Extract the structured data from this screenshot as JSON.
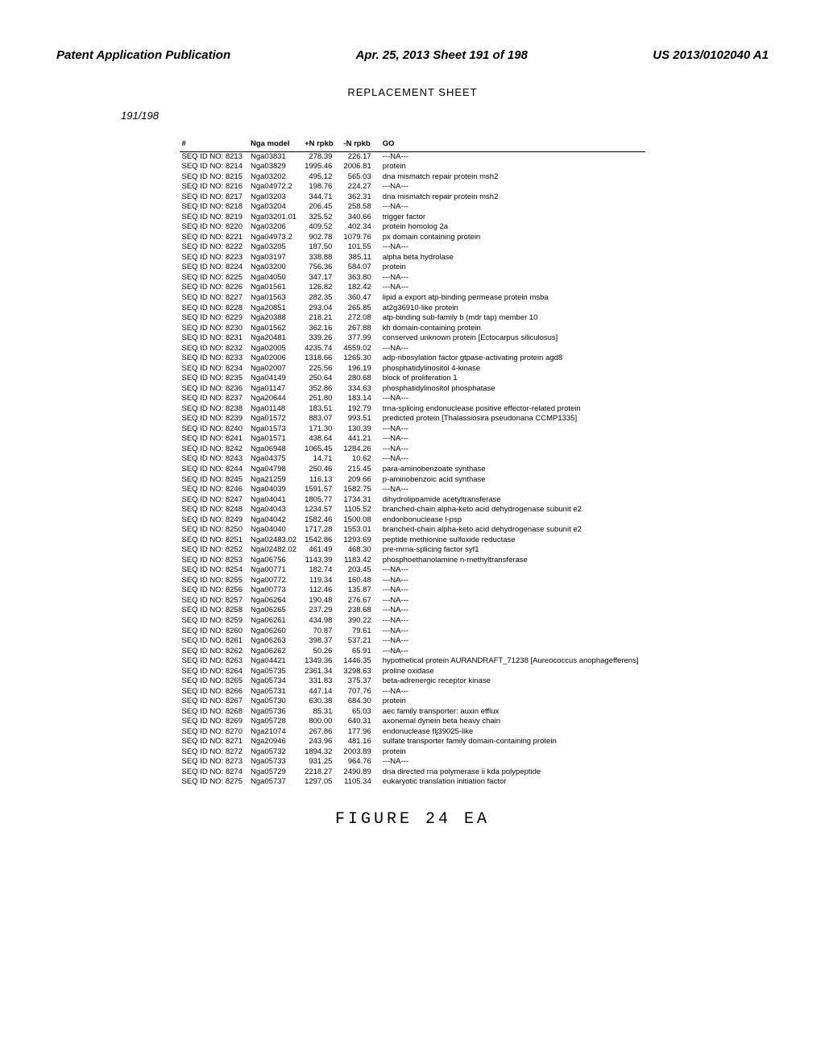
{
  "header": {
    "left": "Patent Application Publication",
    "center": "Apr. 25, 2013  Sheet 191 of 198",
    "right": "US 2013/0102040 A1"
  },
  "replacement_sheet": "REPLACEMENT SHEET",
  "page_count": "191/198",
  "figure_label": "FIGURE 24 EA",
  "columns": [
    "#",
    "Nga model",
    "+N rpkb",
    "-N rpkb",
    "GO"
  ],
  "rows": [
    [
      "SEQ ID NO: 8213",
      "Nga03831",
      "278.39",
      "226.17",
      "---NA---"
    ],
    [
      "SEQ ID NO: 8214",
      "Nga03829",
      "1995.46",
      "2006.81",
      "protein"
    ],
    [
      "SEQ ID NO: 8215",
      "Nga03202",
      "495.12",
      "565.03",
      "dna mismatch repair protein msh2"
    ],
    [
      "SEQ ID NO: 8216",
      "Nga04972.2",
      "198.76",
      "224.27",
      "---NA---"
    ],
    [
      "SEQ ID NO: 8217",
      "Nga03203",
      "344.71",
      "362.31",
      "dna mismatch repair protein msh2"
    ],
    [
      "SEQ ID NO: 8218",
      "Nga03204",
      "206.45",
      "258.58",
      "---NA---"
    ],
    [
      "SEQ ID NO: 8219",
      "Nga03201.01",
      "325.52",
      "340.66",
      "trigger factor"
    ],
    [
      "SEQ ID NO: 8220",
      "Nga03206",
      "409.52",
      "402.34",
      "protein homolog 2a"
    ],
    [
      "SEQ ID NO: 8221",
      "Nga04973.2",
      "902.78",
      "1079.76",
      "px domain containing protein"
    ],
    [
      "SEQ ID NO: 8222",
      "Nga03205",
      "187.50",
      "101.55",
      "---NA---"
    ],
    [
      "SEQ ID NO: 8223",
      "Nga03197",
      "338.88",
      "385.11",
      "alpha beta hydrolase"
    ],
    [
      "SEQ ID NO: 8224",
      "Nga03200",
      "756.36",
      "584.07",
      "protein"
    ],
    [
      "SEQ ID NO: 8225",
      "Nga04050",
      "347.17",
      "363.80",
      "---NA---"
    ],
    [
      "SEQ ID NO: 8226",
      "Nga01561",
      "126.82",
      "182.42",
      "---NA---"
    ],
    [
      "SEQ ID NO: 8227",
      "Nga01563",
      "282.35",
      "360.47",
      "lipid a export atp-binding permease protein msba"
    ],
    [
      "SEQ ID NO: 8228",
      "Nga20851",
      "293.04",
      "265.85",
      "at2g36910-like protein"
    ],
    [
      "SEQ ID NO: 8229",
      "Nga20388",
      "218.21",
      "272.08",
      "atp-binding sub-family b (mdr tap) member 10"
    ],
    [
      "SEQ ID NO: 8230",
      "Nga01562",
      "362.16",
      "267.88",
      "kh domain-containing protein"
    ],
    [
      "SEQ ID NO: 8231",
      "Nga20481",
      "339.26",
      "377.99",
      "conserved unknown protein [Ectocarpus siliculosus]"
    ],
    [
      "SEQ ID NO: 8232",
      "Nga02005",
      "4235.74",
      "4559.02",
      "---NA---"
    ],
    [
      "SEQ ID NO: 8233",
      "Nga02006",
      "1318.66",
      "1265.30",
      "adp-ribosylation factor gtpase-activating protein agd8"
    ],
    [
      "SEQ ID NO: 8234",
      "Nga02007",
      "225.56",
      "196.19",
      "phosphatidylinositol 4-kinase"
    ],
    [
      "SEQ ID NO: 8235",
      "Nga04149",
      "250.64",
      "280.68",
      "block of proliferation 1"
    ],
    [
      "SEQ ID NO: 8236",
      "Nga01147",
      "352.86",
      "334.63",
      "phosphatidylinositol phosphatase"
    ],
    [
      "SEQ ID NO: 8237",
      "Nga20644",
      "251.80",
      "183.14",
      "---NA---"
    ],
    [
      "SEQ ID NO: 8238",
      "Nga01148",
      "183.51",
      "192.79",
      "trna-splicing endonuclease positive effector-related protein"
    ],
    [
      "SEQ ID NO: 8239",
      "Nga01572",
      "883.07",
      "993.51",
      "predicted protein [Thalassiosira pseudonana CCMP1335]"
    ],
    [
      "SEQ ID NO: 8240",
      "Nga01573",
      "171.30",
      "130.39",
      "---NA---"
    ],
    [
      "SEQ ID NO: 8241",
      "Nga01571",
      "438.64",
      "441.21",
      "---NA---"
    ],
    [
      "SEQ ID NO: 8242",
      "Nga06948",
      "1065.45",
      "1284.26",
      "---NA---"
    ],
    [
      "SEQ ID NO: 8243",
      "Nga04375",
      "14.71",
      "10.62",
      "---NA---"
    ],
    [
      "SEQ ID NO: 8244",
      "Nga04798",
      "250.46",
      "215.45",
      "para-aminobenzoate synthase"
    ],
    [
      "SEQ ID NO: 8245",
      "Nga21259",
      "116.13",
      "209.66",
      "p-aminobenzoic acid synthase"
    ],
    [
      "SEQ ID NO: 8246",
      "Nga04039",
      "1591.57",
      "1582.75",
      "---NA---"
    ],
    [
      "SEQ ID NO: 8247",
      "Nga04041",
      "1805.77",
      "1734.31",
      "dihydrolipoamide acetyltransferase"
    ],
    [
      "SEQ ID NO: 8248",
      "Nga04043",
      "1234.57",
      "1105.52",
      "branched-chain alpha-keto acid dehydrogenase subunit e2"
    ],
    [
      "SEQ ID NO: 8249",
      "Nga04042",
      "1582.46",
      "1500.08",
      "endoribonuclease l-psp"
    ],
    [
      "SEQ ID NO: 8250",
      "Nga04040",
      "1717.28",
      "1553.01",
      "branched-chain alpha-keto acid dehydrogenase subunit e2"
    ],
    [
      "SEQ ID NO: 8251",
      "Nga02483.02",
      "1542.86",
      "1293.69",
      "peptide methionine sulfoxide reductase"
    ],
    [
      "SEQ ID NO: 8252",
      "Nga02482.02",
      "461.49",
      "468.30",
      "pre-mrna-splicing factor syf1"
    ],
    [
      "SEQ ID NO: 8253",
      "Nga06756",
      "1143.39",
      "1183.42",
      "phosphoethanolamine n-methyltransferase"
    ],
    [
      "SEQ ID NO: 8254",
      "Nga00771",
      "182.74",
      "203.45",
      "---NA---"
    ],
    [
      "SEQ ID NO: 8255",
      "Nga00772",
      "119.34",
      "160.48",
      "---NA---"
    ],
    [
      "SEQ ID NO: 8256",
      "Nga00773",
      "112.46",
      "135.87",
      "---NA---"
    ],
    [
      "SEQ ID NO: 8257",
      "Nga06264",
      "190.48",
      "276.67",
      "---NA---"
    ],
    [
      "SEQ ID NO: 8258",
      "Nga06265",
      "237.29",
      "238.68",
      "---NA---"
    ],
    [
      "SEQ ID NO: 8259",
      "Nga06261",
      "434.98",
      "390.22",
      "---NA---"
    ],
    [
      "SEQ ID NO: 8260",
      "Nga06260",
      "70.87",
      "79.61",
      "---NA---"
    ],
    [
      "SEQ ID NO: 8261",
      "Nga06263",
      "398.37",
      "537.21",
      "---NA---"
    ],
    [
      "SEQ ID NO: 8262",
      "Nga06262",
      "50.26",
      "65.91",
      "---NA---"
    ],
    [
      "SEQ ID NO: 8263",
      "Nga04421",
      "1349.36",
      "1446.35",
      "hypothetical protein AURANDRAFT_71238 [Aureococcus anophagefferens]"
    ],
    [
      "SEQ ID NO: 8264",
      "Nga05735",
      "2361.34",
      "3298.63",
      "proline oxidase"
    ],
    [
      "SEQ ID NO: 8265",
      "Nga05734",
      "331.83",
      "375.37",
      "beta-adrenergic receptor kinase"
    ],
    [
      "SEQ ID NO: 8266",
      "Nga05731",
      "447.14",
      "707.76",
      "---NA---"
    ],
    [
      "SEQ ID NO: 8267",
      "Nga05730",
      "630.38",
      "684.30",
      "protein"
    ],
    [
      "SEQ ID NO: 8268",
      "Nga05736",
      "85.31",
      "65.03",
      "aec family transporter: auxin efflux"
    ],
    [
      "SEQ ID NO: 8269",
      "Nga05728",
      "800.00",
      "640.31",
      "axonemal dynein beta heavy chain"
    ],
    [
      "SEQ ID NO: 8270",
      "Nga21074",
      "267.86",
      "177.96",
      "endonuclease flj39025-like"
    ],
    [
      "SEQ ID NO: 8271",
      "Nga20946",
      "243.96",
      "481.16",
      "sulfate transporter family domain-containing protein"
    ],
    [
      "SEQ ID NO: 8272",
      "Nga05732",
      "1894.32",
      "2003.89",
      "protein"
    ],
    [
      "SEQ ID NO: 8273",
      "Nga05733",
      "931.25",
      "964.76",
      "---NA---"
    ],
    [
      "SEQ ID NO: 8274",
      "Nga05729",
      "2218.27",
      "2490.89",
      "dna directed rna polymerase ii kda polypeptide"
    ],
    [
      "SEQ ID NO: 8275",
      "Nga05737",
      "1297.05",
      "1105.34",
      "eukaryotic translation initiation factor"
    ]
  ]
}
